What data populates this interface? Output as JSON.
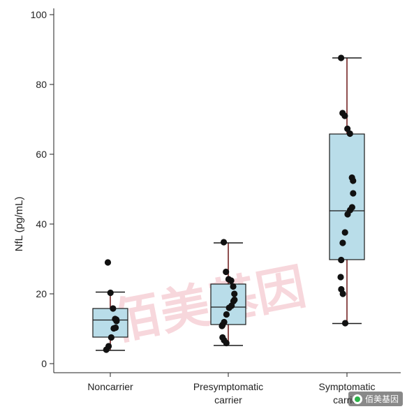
{
  "chart_data": {
    "type": "box",
    "title": "",
    "xlabel": "",
    "ylabel": "NfL (pg/mL)",
    "ylim": [
      0,
      100
    ],
    "yticks": [
      0,
      20,
      40,
      60,
      80,
      100
    ],
    "grid": false,
    "categories": [
      {
        "lines": [
          "Noncarrier"
        ]
      },
      {
        "lines": [
          "Presymptomatic",
          "carrier"
        ]
      },
      {
        "lines": [
          "Symptomatic",
          "carrier"
        ]
      }
    ],
    "boxes": [
      {
        "min": 3.8,
        "q1": 7.6,
        "median": 12.5,
        "q3": 15.8,
        "max": 20.5
      },
      {
        "min": 5.2,
        "q1": 11.2,
        "median": 16.2,
        "q3": 22.8,
        "max": 34.6
      },
      {
        "min": 11.5,
        "q1": 29.8,
        "median": 43.8,
        "q3": 65.8,
        "max": 87.6
      }
    ],
    "points": [
      [
        29.0,
        20.3,
        15.8,
        12.8,
        12.6,
        12.2,
        10.3,
        10.1,
        7.5,
        5.0,
        4.0
      ],
      [
        34.8,
        26.3,
        24.2,
        23.8,
        22.1,
        20.0,
        18.3,
        17.9,
        16.6,
        16.0,
        14.1,
        11.9,
        11.1,
        10.8,
        7.5,
        6.7,
        5.9
      ],
      [
        87.6,
        71.8,
        71.0,
        67.3,
        65.9,
        53.3,
        52.4,
        48.8,
        44.8,
        44.0,
        42.8,
        37.6,
        34.6,
        29.7,
        24.8,
        21.3,
        20.0,
        11.6
      ]
    ],
    "colors": {
      "box_fill": "#b9dde9",
      "box_stroke": "#1a1a1a",
      "whisker": "#6b1414",
      "point": "#111111"
    }
  },
  "watermark": {
    "text": "佰美基因"
  },
  "badge": {
    "text": "佰美基因",
    "icon": "wechat-icon"
  }
}
